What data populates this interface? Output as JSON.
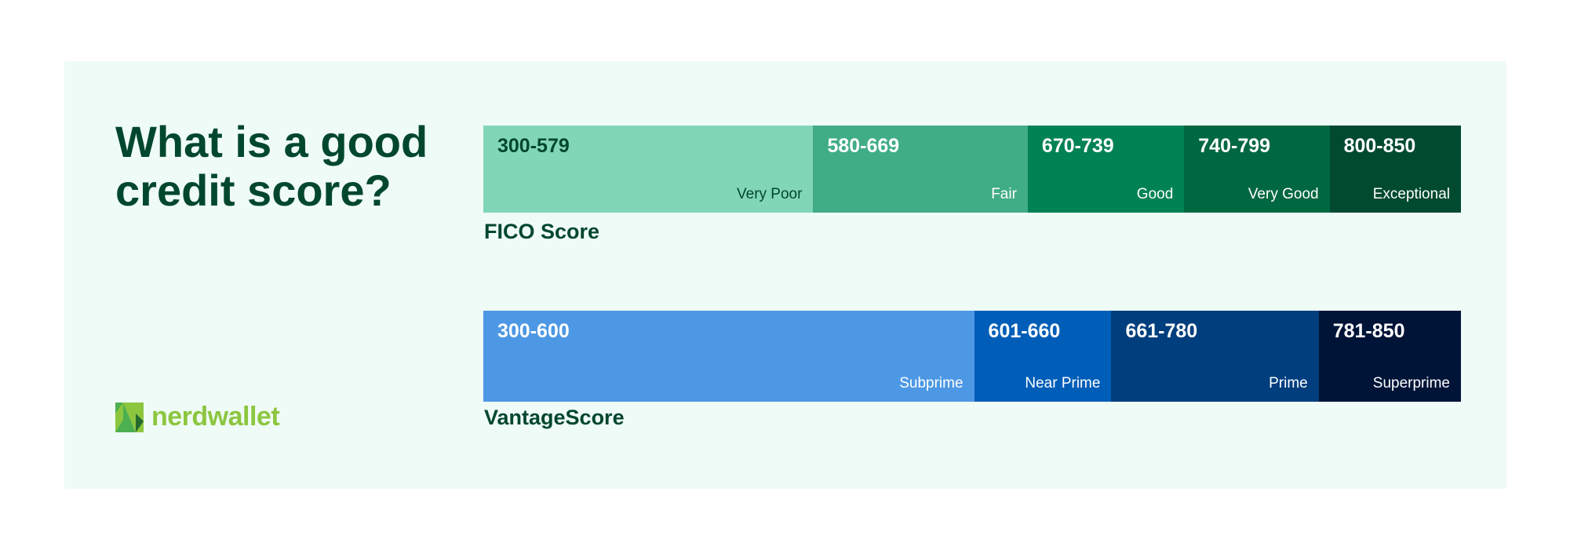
{
  "title": "What is a good credit score?",
  "brand": "nerdwallet",
  "chart_data": [
    {
      "type": "bar",
      "orientation": "horizontal-stacked",
      "label": "FICO Score",
      "range": [
        300,
        850
      ],
      "segments": [
        {
          "range_label": "300-579",
          "category": "Very Poor",
          "min": 300,
          "max": 579,
          "color": "#82d6b8",
          "text_color": "#00472e"
        },
        {
          "range_label": "580-669",
          "category": "Fair",
          "min": 580,
          "max": 669,
          "color": "#41ad86",
          "text_color": "#ffffff"
        },
        {
          "range_label": "670-739",
          "category": "Good",
          "min": 670,
          "max": 739,
          "color": "#008254",
          "text_color": "#ffffff"
        },
        {
          "range_label": "740-799",
          "category": "Very Good",
          "min": 740,
          "max": 799,
          "color": "#006840",
          "text_color": "#ffffff"
        },
        {
          "range_label": "800-850",
          "category": "Exceptional",
          "min": 800,
          "max": 850,
          "color": "#004a30",
          "text_color": "#ffffff"
        }
      ]
    },
    {
      "type": "bar",
      "orientation": "horizontal-stacked",
      "label": "VantageScore",
      "range": [
        300,
        850
      ],
      "segments": [
        {
          "range_label": "300-600",
          "category": "Subprime",
          "min": 300,
          "max": 600,
          "color": "#4d98e4",
          "text_color": "#ffffff"
        },
        {
          "range_label": "601-660",
          "category": "Near Prime",
          "min": 601,
          "max": 660,
          "color": "#005eb8",
          "text_color": "#ffffff"
        },
        {
          "range_label": "661-780",
          "category": "Prime",
          "min": 661,
          "max": 780,
          "color": "#003e7e",
          "text_color": "#ffffff"
        },
        {
          "range_label": "781-850",
          "category": "Superprime",
          "min": 781,
          "max": 850,
          "color": "#001438",
          "text_color": "#ffffff"
        }
      ]
    }
  ]
}
